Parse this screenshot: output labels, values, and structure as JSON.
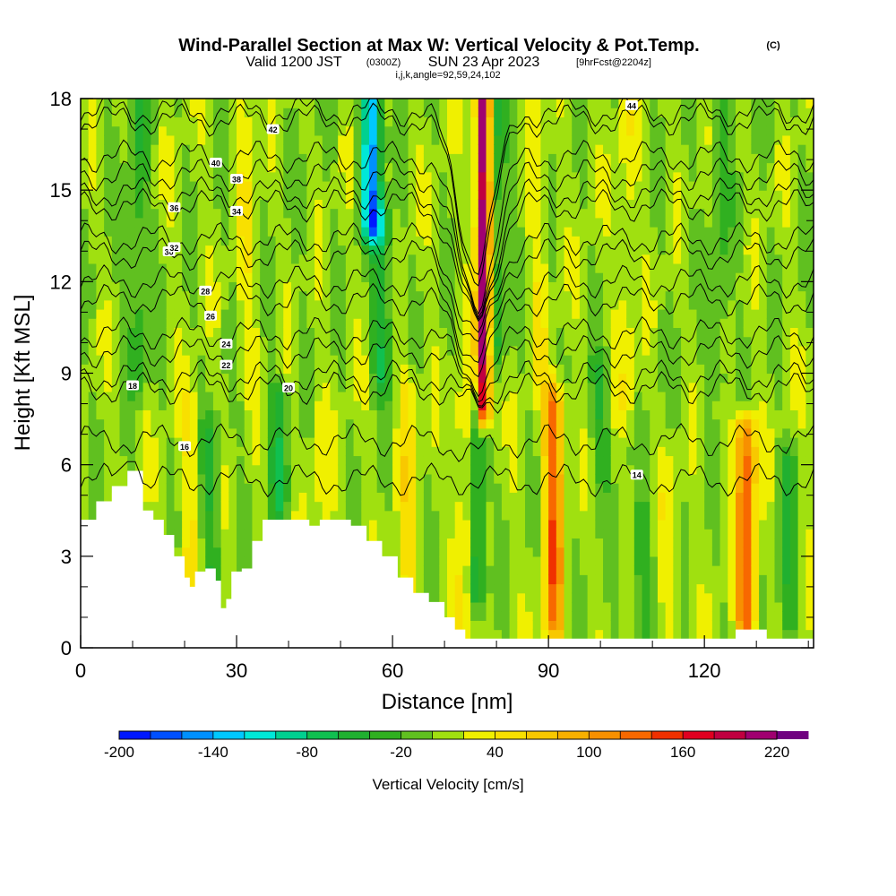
{
  "chart_data": {
    "type": "heatmap",
    "title": "Wind-Parallel Section at Max W: Vertical Velocity & Pot.Temp.",
    "title_mark": "(C)",
    "subtitle_valid": "Valid 1200 JST",
    "subtitle_utc": "(0300Z)",
    "subtitle_date": "SUN 23 Apr 2023",
    "subtitle_fcst": "[9hrFcst@2204z]",
    "subtitle_grid": "i,j,k,angle=92,59,24,102",
    "xlabel": "Distance [nm]",
    "ylabel": "Height [Kft MSL]",
    "xlim": [
      0,
      141
    ],
    "ylim": [
      0,
      18
    ],
    "x_ticks": [
      "0",
      "30",
      "60",
      "90",
      "120"
    ],
    "x_tick_values": [
      0,
      30,
      60,
      90,
      120
    ],
    "y_ticks": [
      "0",
      "3",
      "6",
      "9",
      "12",
      "15",
      "18"
    ],
    "y_tick_values": [
      0,
      3,
      6,
      9,
      12,
      15,
      18
    ],
    "colorbar": {
      "title": "Vertical Velocity [cm/s]",
      "min": -200,
      "max": 220,
      "step": 20,
      "tick_labels": [
        "-200",
        "-140",
        "-80",
        "-20",
        "40",
        "100",
        "160",
        "220"
      ],
      "tick_values": [
        -200,
        -140,
        -80,
        -20,
        40,
        100,
        160,
        220
      ],
      "colors": [
        "#0018ff",
        "#0050ff",
        "#0090ff",
        "#00c8ff",
        "#00e8d8",
        "#00d090",
        "#10c050",
        "#20b030",
        "#30b020",
        "#60c020",
        "#a0e010",
        "#f0f000",
        "#f8e000",
        "#f8c800",
        "#f8b000",
        "#f89000",
        "#f86800",
        "#f03000",
        "#e00020",
        "#c00040",
        "#a00070",
        "#700080"
      ]
    },
    "terrain": [
      [
        0,
        4.2
      ],
      [
        3,
        4.8
      ],
      [
        6,
        5.3
      ],
      [
        9,
        5.8
      ],
      [
        11,
        5.8
      ],
      [
        12,
        4.5
      ],
      [
        14,
        4.2
      ],
      [
        16,
        3.7
      ],
      [
        18,
        3.0
      ],
      [
        20,
        2.3
      ],
      [
        21,
        2.0
      ],
      [
        22,
        2.5
      ],
      [
        24,
        2.6
      ],
      [
        26,
        2.2
      ],
      [
        27,
        1.3
      ],
      [
        28,
        1.6
      ],
      [
        29,
        2.5
      ],
      [
        31,
        2.6
      ],
      [
        33,
        3.5
      ],
      [
        35,
        4.2
      ],
      [
        40,
        4.2
      ],
      [
        44,
        4.0
      ],
      [
        46,
        4.2
      ],
      [
        48,
        4.2
      ],
      [
        50,
        4.2
      ],
      [
        52,
        4.0
      ],
      [
        55,
        3.5
      ],
      [
        58,
        3.0
      ],
      [
        61,
        2.3
      ],
      [
        64,
        1.8
      ],
      [
        67,
        1.5
      ],
      [
        70,
        1.0
      ],
      [
        72,
        0.6
      ],
      [
        74,
        0.3
      ],
      [
        109,
        0.3
      ],
      [
        118,
        0.3
      ],
      [
        125,
        0.3
      ],
      [
        126,
        0.6
      ],
      [
        131,
        0.6
      ],
      [
        132,
        0.3
      ],
      [
        141,
        0.3
      ]
    ],
    "updraft_columns": [
      {
        "x": 21,
        "w": 30,
        "zmin": 1.5,
        "zmax": 8
      },
      {
        "x": 46,
        "w": 20,
        "zmin": 3.5,
        "zmax": 8
      },
      {
        "x": 63,
        "w": 40,
        "zmin": 2,
        "zmax": 8.5
      },
      {
        "x": 74,
        "w": 55,
        "zmin": 1,
        "zmax": 8
      },
      {
        "x": 77.5,
        "w": 220,
        "zmin": 8,
        "zmax": 18
      },
      {
        "x": 91,
        "w": 120,
        "zmin": 1,
        "zmax": 8
      },
      {
        "x": 105,
        "w": 25,
        "zmin": 8,
        "zmax": 18
      },
      {
        "x": 113,
        "w": 20,
        "zmin": 1,
        "zmax": 6
      },
      {
        "x": 128,
        "w": 130,
        "zmin": 1,
        "zmax": 7
      },
      {
        "x": 32,
        "w": 25,
        "zmin": 9,
        "zmax": 18
      },
      {
        "x": 88,
        "w": 25,
        "zmin": 9,
        "zmax": 18
      }
    ],
    "downdraft_columns": [
      {
        "x": 11,
        "w": -40,
        "zmin": 9,
        "zmax": 18
      },
      {
        "x": 56,
        "w": -150,
        "zmin": 14,
        "zmax": 18
      },
      {
        "x": 58,
        "w": -60,
        "zmin": 9,
        "zmax": 14
      },
      {
        "x": 76,
        "w": -80,
        "zmin": 2,
        "zmax": 8
      },
      {
        "x": 80,
        "w": -50,
        "zmin": 10,
        "zmax": 18
      },
      {
        "x": 25,
        "w": -40,
        "zmin": 2,
        "zmax": 7
      },
      {
        "x": 38,
        "w": -50,
        "zmin": 4,
        "zmax": 8
      },
      {
        "x": 100,
        "w": -40,
        "zmin": 6,
        "zmax": 9
      },
      {
        "x": 108,
        "w": -40,
        "zmin": 1,
        "zmax": 4
      },
      {
        "x": 123,
        "w": -30,
        "zmin": 9,
        "zmax": 18
      },
      {
        "x": 136,
        "w": -40,
        "zmin": 1,
        "zmax": 6
      }
    ],
    "theta_contours": [
      {
        "label": "14",
        "base": 5.5,
        "label_x": 107
      },
      {
        "label": "16",
        "base": 6.8,
        "label_x": 20
      },
      {
        "label": "18",
        "base": 8.5,
        "label_x": 10
      },
      {
        "label": "20",
        "base": 8.9,
        "label_x": 40
      },
      {
        "label": "22",
        "base": 9.7,
        "label_x": 28
      },
      {
        "label": "24",
        "base": 10.3,
        "label_x": 28
      },
      {
        "label": "26",
        "base": 11.4,
        "label_x": 25
      },
      {
        "label": "28",
        "base": 12.0,
        "label_x": 24
      },
      {
        "label": "30",
        "base": 12.9,
        "label_x": 17
      },
      {
        "label": "32",
        "base": 13.4,
        "label_x": 18
      },
      {
        "label": "34",
        "base": 14.5,
        "label_x": 30
      },
      {
        "label": "36",
        "base": 14.9,
        "label_x": 18
      },
      {
        "label": "38",
        "base": 15.5,
        "label_x": 30
      },
      {
        "label": "40",
        "base": 16.1,
        "label_x": 26
      },
      {
        "label": "42",
        "base": 17.3,
        "label_x": 37
      },
      {
        "label": "44",
        "base": 17.6,
        "label_x": 106
      }
    ]
  }
}
